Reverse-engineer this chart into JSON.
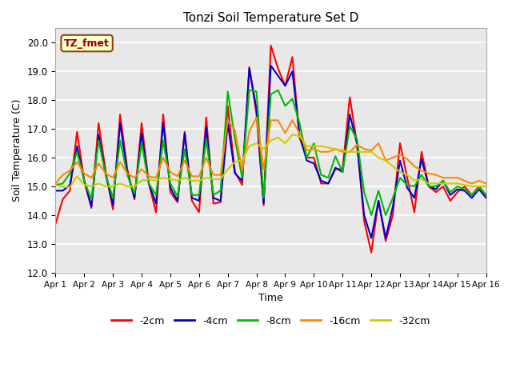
{
  "title": "Tonzi Soil Temperature Set D",
  "xlabel": "Time",
  "ylabel": "Soil Temperature (C)",
  "ylim": [
    12.0,
    20.5
  ],
  "xlim": [
    0,
    15
  ],
  "xtick_labels": [
    "Apr 1",
    "Apr 2",
    "Apr 3",
    "Apr 4",
    "Apr 5",
    "Apr 6",
    "Apr 7",
    "Apr 8",
    "Apr 9",
    "Apr 10",
    "Apr 11",
    "Apr 12",
    "Apr 13",
    "Apr 14",
    "Apr 15",
    "Apr 16"
  ],
  "ytick_values": [
    12.0,
    13.0,
    14.0,
    15.0,
    16.0,
    17.0,
    18.0,
    19.0,
    20.0
  ],
  "annotation": "TZ_fmet",
  "legend_labels": [
    "-2cm",
    "-4cm",
    "-8cm",
    "-16cm",
    "-32cm"
  ],
  "line_colors": [
    "#ff0000",
    "#0000cc",
    "#00bb00",
    "#ff8800",
    "#cccc00"
  ],
  "background_color": "#e8e8e8",
  "series": {
    "d2cm": [
      13.7,
      14.55,
      14.85,
      16.9,
      15.2,
      14.25,
      17.2,
      15.5,
      14.2,
      17.5,
      15.6,
      14.55,
      17.2,
      15.1,
      14.1,
      17.5,
      14.8,
      14.45,
      16.9,
      14.5,
      14.1,
      17.4,
      14.4,
      14.45,
      17.8,
      15.5,
      15.05,
      19.15,
      17.5,
      14.35,
      19.9,
      19.1,
      18.5,
      19.5,
      16.7,
      16.0,
      16.0,
      15.1,
      15.1,
      15.6,
      15.6,
      18.1,
      16.5,
      13.8,
      12.7,
      14.5,
      13.1,
      14.0,
      16.5,
      15.3,
      14.1,
      16.2,
      15.0,
      14.8,
      15.0,
      14.5,
      14.8,
      15.0,
      14.7,
      15.0,
      14.7
    ],
    "d4cm": [
      14.85,
      14.85,
      15.05,
      16.4,
      15.2,
      14.3,
      16.8,
      15.4,
      14.35,
      17.2,
      15.5,
      14.6,
      16.85,
      15.1,
      14.4,
      17.2,
      14.95,
      14.5,
      16.85,
      14.6,
      14.5,
      17.05,
      14.6,
      14.5,
      17.2,
      15.45,
      15.2,
      19.1,
      17.7,
      14.4,
      19.2,
      18.85,
      18.5,
      19.0,
      16.8,
      15.9,
      15.8,
      15.2,
      15.1,
      15.65,
      15.5,
      17.5,
      16.5,
      14.0,
      13.2,
      14.5,
      13.2,
      14.3,
      15.9,
      14.95,
      14.6,
      15.95,
      15.0,
      14.9,
      15.2,
      14.7,
      14.9,
      14.85,
      14.6,
      14.9,
      14.6
    ],
    "d8cm": [
      15.05,
      15.1,
      15.45,
      16.2,
      15.2,
      14.55,
      16.6,
      15.4,
      14.6,
      16.6,
      15.4,
      14.75,
      16.5,
      15.1,
      14.7,
      16.6,
      15.1,
      14.65,
      16.3,
      14.7,
      14.7,
      16.65,
      14.7,
      14.85,
      18.3,
      16.65,
      15.3,
      18.35,
      18.3,
      14.6,
      18.2,
      18.35,
      17.8,
      18.05,
      17.2,
      16.0,
      16.5,
      15.4,
      15.3,
      16.05,
      15.5,
      17.1,
      16.65,
      14.8,
      14.0,
      14.85,
      14.0,
      14.6,
      15.3,
      15.05,
      15.0,
      15.4,
      15.0,
      15.0,
      15.2,
      14.8,
      15.0,
      14.9,
      14.7,
      14.95,
      14.7
    ],
    "d16cm": [
      15.1,
      15.4,
      15.55,
      15.85,
      15.45,
      15.3,
      15.8,
      15.45,
      15.3,
      15.85,
      15.45,
      15.3,
      15.6,
      15.35,
      15.3,
      16.0,
      15.5,
      15.35,
      15.9,
      15.35,
      15.35,
      16.0,
      15.4,
      15.4,
      17.3,
      16.95,
      15.55,
      16.9,
      17.4,
      15.6,
      17.3,
      17.3,
      16.85,
      17.3,
      16.85,
      16.25,
      16.3,
      16.2,
      16.2,
      16.3,
      16.2,
      16.2,
      16.45,
      16.3,
      16.25,
      16.5,
      15.9,
      16.0,
      16.1,
      15.95,
      15.7,
      15.55,
      15.45,
      15.4,
      15.3,
      15.3,
      15.3,
      15.2,
      15.1,
      15.2,
      15.1
    ],
    "d32cm": [
      15.05,
      14.98,
      14.98,
      15.35,
      15.05,
      15.0,
      15.1,
      15.0,
      15.0,
      15.1,
      15.0,
      15.0,
      15.2,
      15.25,
      15.2,
      15.3,
      15.25,
      15.2,
      15.3,
      15.2,
      15.2,
      15.3,
      15.25,
      15.25,
      15.6,
      15.85,
      15.9,
      16.4,
      16.5,
      16.3,
      16.6,
      16.7,
      16.5,
      16.8,
      16.75,
      16.4,
      16.4,
      16.4,
      16.35,
      16.3,
      16.25,
      16.2,
      16.2,
      16.2,
      16.2,
      16.0,
      15.9,
      15.7,
      15.5,
      15.4,
      15.2,
      15.25,
      15.1,
      15.1,
      15.1,
      15.1,
      15.1,
      15.05,
      15.0,
      15.0,
      15.0
    ]
  }
}
